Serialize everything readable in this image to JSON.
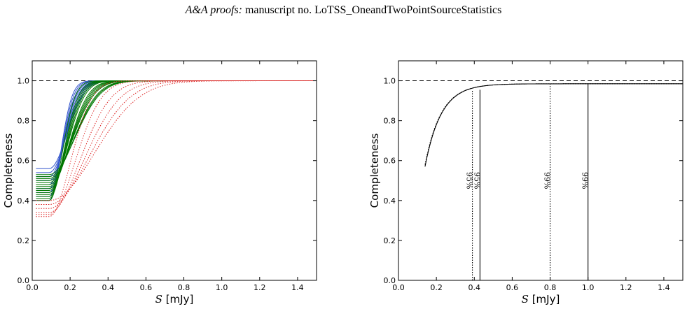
{
  "header": {
    "journal": "A&A proofs:",
    "rest": " manuscript no. LoTSS_OneandTwoPointSourceStatistics"
  },
  "chart_data": [
    {
      "type": "line",
      "xlabel_symbol": "S",
      "xlabel_unit": " [mJy]",
      "ylabel": "Completeness",
      "xlim": [
        0.0,
        1.5
      ],
      "ylim": [
        0.0,
        1.1
      ],
      "xticks": [
        "0.0",
        "0.2",
        "0.4",
        "0.6",
        "0.8",
        "1.0",
        "1.2",
        "1.4"
      ],
      "yticks": [
        "0.0",
        "0.2",
        "0.4",
        "0.6",
        "0.8",
        "1.0"
      ],
      "reference_line": 1.0,
      "series_groups": [
        {
          "style": "solid",
          "color": "#3355cc",
          "plateaus": [
            0.4,
            0.42,
            0.44,
            0.46,
            0.48,
            0.5,
            0.52,
            0.54,
            0.56
          ],
          "s50": [
            0.16,
            0.165,
            0.17,
            0.175,
            0.18,
            0.185,
            0.19,
            0.195,
            0.2
          ]
        },
        {
          "style": "solid",
          "color": "#007700",
          "plateaus": [
            0.4,
            0.41,
            0.42,
            0.43,
            0.44,
            0.45,
            0.46,
            0.47,
            0.48,
            0.49,
            0.5,
            0.51,
            0.52,
            0.53
          ],
          "s50": [
            0.17,
            0.18,
            0.185,
            0.19,
            0.195,
            0.2,
            0.21,
            0.215,
            0.22,
            0.225,
            0.23,
            0.24,
            0.245,
            0.25
          ]
        },
        {
          "style": "dotted",
          "color": "#dd2222",
          "plateaus": [
            0.32,
            0.33,
            0.34,
            0.36,
            0.38,
            0.4
          ],
          "s50": [
            0.22,
            0.25,
            0.28,
            0.31,
            0.34,
            0.37
          ]
        }
      ]
    },
    {
      "type": "line",
      "xlabel_symbol": "S",
      "xlabel_unit": " [mJy]",
      "ylabel": "Completeness",
      "xlim": [
        0.0,
        1.5
      ],
      "ylim": [
        0.0,
        1.1
      ],
      "xticks": [
        "0.0",
        "0.2",
        "0.4",
        "0.6",
        "0.8",
        "1.0",
        "1.2",
        "1.4"
      ],
      "yticks": [
        "0.0",
        "0.2",
        "0.4",
        "0.6",
        "0.8",
        "1.0"
      ],
      "reference_line": 1.0,
      "series": [
        {
          "style": "solid",
          "x_start": 0.14,
          "y_start": 0.57
        },
        {
          "style": "dotted",
          "x_start": 0.14,
          "y_start": 0.58
        }
      ],
      "vlines": [
        {
          "x": 0.39,
          "style": "dotted",
          "label": "95%"
        },
        {
          "x": 0.43,
          "style": "solid",
          "label": "95%"
        },
        {
          "x": 0.8,
          "style": "dotted",
          "label": "99%"
        },
        {
          "x": 1.0,
          "style": "solid",
          "label": "99%"
        }
      ]
    }
  ]
}
